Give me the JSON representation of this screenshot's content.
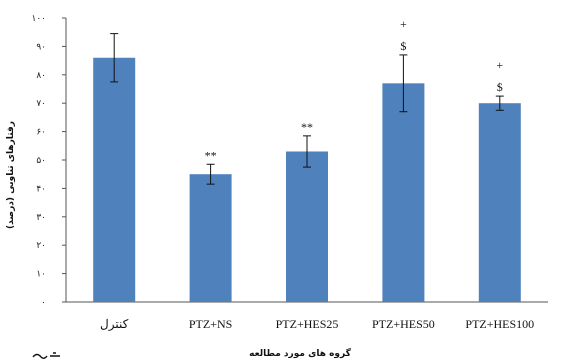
{
  "chart_data": {
    "type": "bar",
    "categories": [
      "کنترل",
      "PTZ+NS",
      "PTZ+HES25",
      "PTZ+HES50",
      "PTZ+HES100"
    ],
    "values": [
      86,
      45,
      53,
      77,
      70
    ],
    "error": [
      8.5,
      3.5,
      5.5,
      10,
      2.5
    ],
    "annotations": [
      [],
      [
        "**"
      ],
      [
        "**"
      ],
      [
        "+",
        "$"
      ],
      [
        "+",
        "$"
      ]
    ],
    "ylim": [
      0,
      100
    ],
    "yticks": [
      0,
      10,
      20,
      30,
      40,
      50,
      60,
      70,
      80,
      90,
      100
    ],
    "ytick_labels": [
      "٠",
      "١٠",
      "٢٠",
      "٣٠",
      "۴٠",
      "۵٠",
      "۶٠",
      "٧٠",
      "٨٠",
      "٩٠",
      "١٠٠"
    ],
    "ylabel": "رفتارهای تناوبی (درصد)",
    "xlabel": "گروه های مورد مطالعه",
    "bar_color": "#4f81bd",
    "grid": false,
    "legend": "none"
  }
}
